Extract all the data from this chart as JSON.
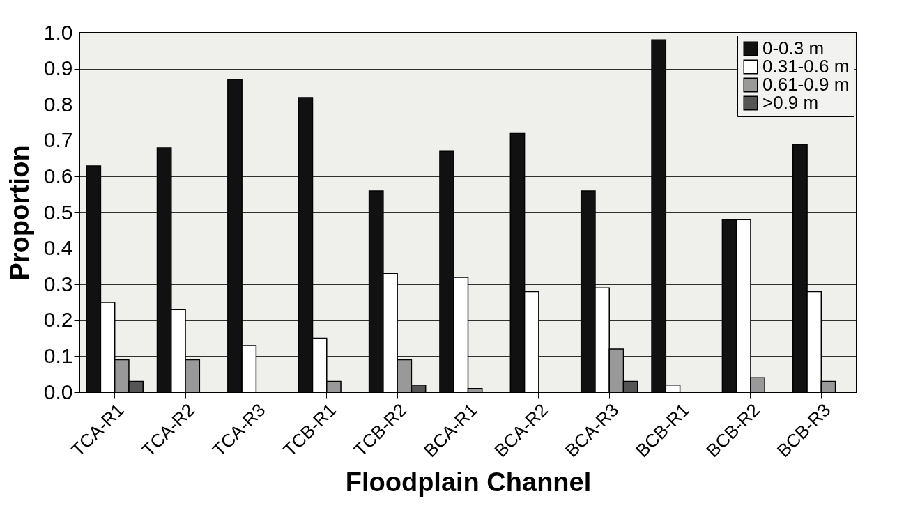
{
  "chart_data": {
    "type": "bar",
    "xlabel": "Floodplain Channel",
    "ylabel": "Proportion",
    "categories": [
      "TCA-R1",
      "TCA-R2",
      "TCA-R3",
      "TCB-R1",
      "TCB-R2",
      "BCA-R1",
      "BCA-R2",
      "BCA-R3",
      "BCB-R1",
      "BCB-R2",
      "BCB-R3"
    ],
    "series": [
      {
        "name": "0-0.3 m",
        "color": "#111111",
        "values": [
          0.63,
          0.68,
          0.87,
          0.82,
          0.56,
          0.67,
          0.72,
          0.56,
          0.98,
          0.48,
          0.69
        ]
      },
      {
        "name": "0.31-0.6 m",
        "color": "#ffffff",
        "values": [
          0.25,
          0.23,
          0.13,
          0.15,
          0.33,
          0.32,
          0.28,
          0.29,
          0.02,
          0.48,
          0.28
        ]
      },
      {
        "name": "0.61-0.9 m",
        "color": "#999999",
        "values": [
          0.09,
          0.09,
          0,
          0.03,
          0.09,
          0.01,
          0,
          0.12,
          0,
          0.04,
          0.03
        ]
      },
      {
        "name": ">0.9 m",
        "color": "#555555",
        "values": [
          0.03,
          0,
          0,
          0,
          0.02,
          0,
          0,
          0.03,
          0,
          0,
          0
        ]
      }
    ],
    "ylim": [
      0,
      1
    ],
    "yticks": [
      {
        "value": 0,
        "label": "0.0"
      },
      {
        "value": 0.1,
        "label": "0.1"
      },
      {
        "value": 0.2,
        "label": "0.2"
      },
      {
        "value": 0.3,
        "label": "0.3"
      },
      {
        "value": 0.4,
        "label": "0.4"
      },
      {
        "value": 0.5,
        "label": "0.5"
      },
      {
        "value": 0.6,
        "label": "0.6"
      },
      {
        "value": 0.7,
        "label": "0.7"
      },
      {
        "value": 0.8,
        "label": "0.8"
      },
      {
        "value": 0.9,
        "label": "0.9"
      },
      {
        "value": 1,
        "label": "1.0"
      }
    ],
    "grid": "y",
    "legend": "top right"
  }
}
